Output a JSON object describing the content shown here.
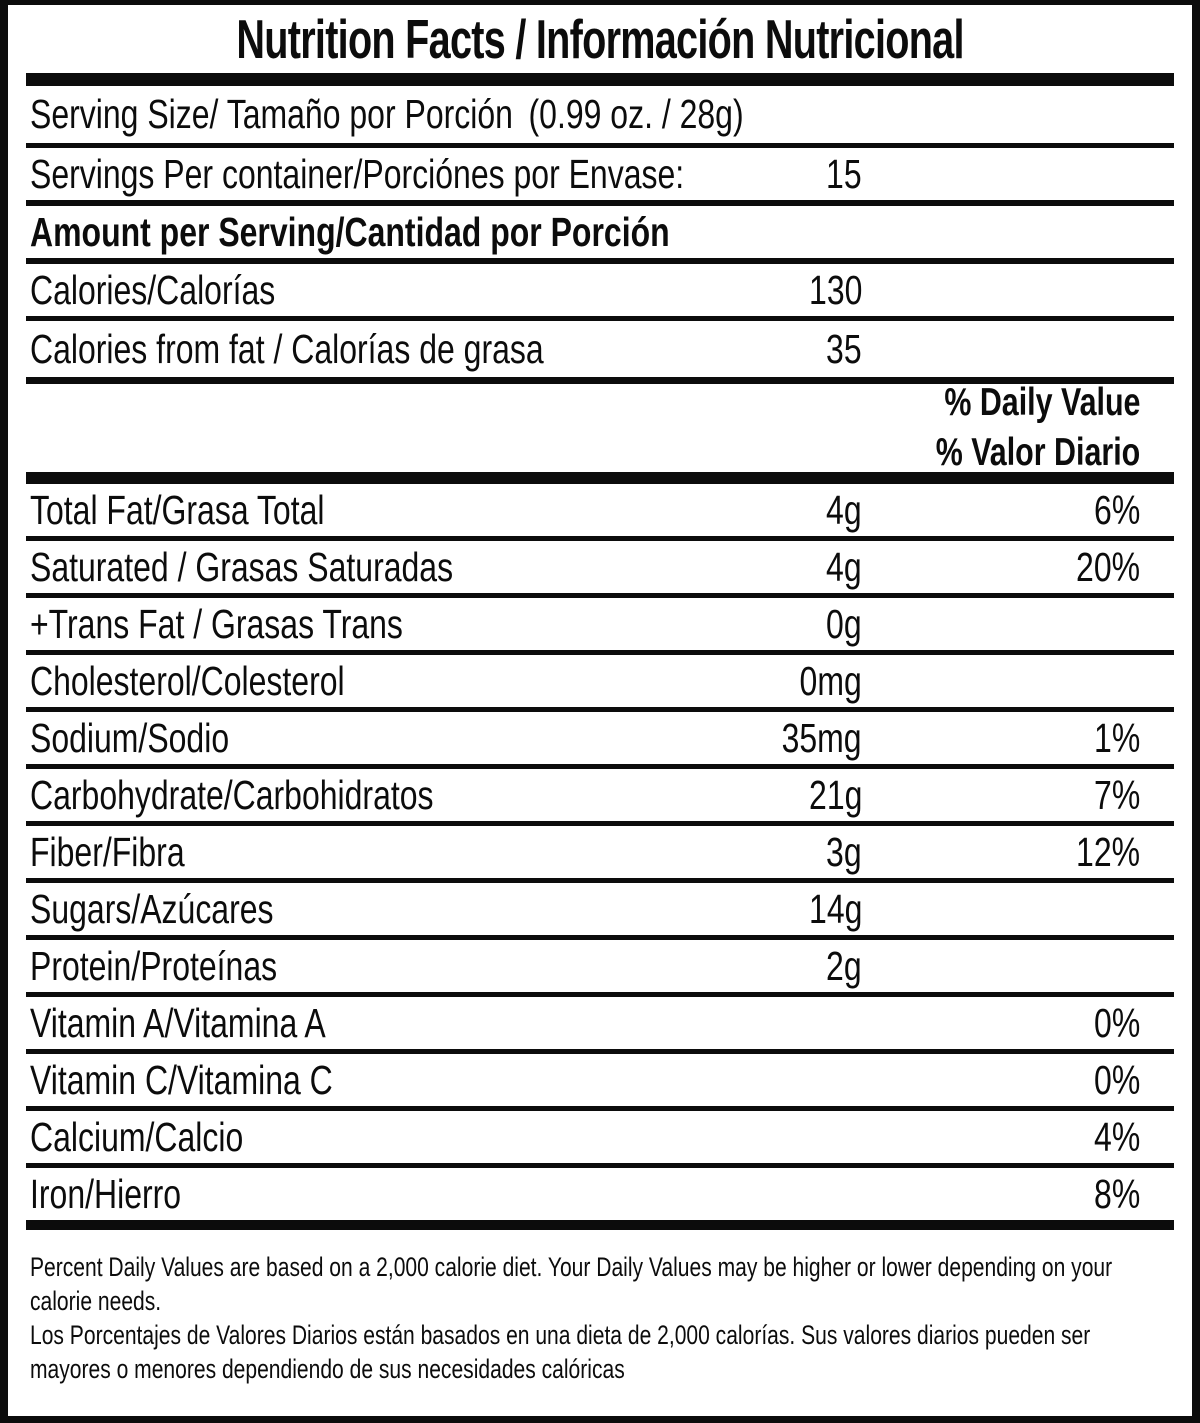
{
  "label": {
    "title": "Nutrition Facts / Información Nutricional",
    "serving_size": {
      "label": "Serving Size/ Tamaño por Porción",
      "value": "(0.99 oz. / 28g)"
    },
    "servings_per_container": {
      "label": "Servings Per container/Porciónes por Envase:",
      "value": "15"
    },
    "amount_header": "Amount per Serving/Cantidad por Porción",
    "calories": {
      "label": "Calories/Calorías",
      "value": "130"
    },
    "calories_from_fat": {
      "label": "Calories from fat / Calorías de grasa",
      "value": "35"
    },
    "daily_value_header": {
      "line1": "% Daily Value",
      "line2": "% Valor Diario"
    },
    "nutrients": [
      {
        "label": "Total Fat/Grasa Total",
        "amount": "4g",
        "dv": "6%"
      },
      {
        "label": "Saturated / Grasas Saturadas",
        "amount": "4g",
        "dv": "20%"
      },
      {
        "label": "+Trans Fat / Grasas Trans",
        "amount": "0g",
        "dv": ""
      },
      {
        "label": "Cholesterol/Colesterol",
        "amount": "0mg",
        "dv": ""
      },
      {
        "label": "Sodium/Sodio",
        "amount": "35mg",
        "dv": "1%"
      },
      {
        "label": "Carbohydrate/Carbohidratos",
        "amount": "21g",
        "dv": "7%"
      },
      {
        "label": "Fiber/Fibra",
        "amount": "3g",
        "dv": "12%"
      },
      {
        "label": "Sugars/Azúcares",
        "amount": "14g",
        "dv": ""
      },
      {
        "label": "Protein/Proteínas",
        "amount": "2g",
        "dv": ""
      }
    ],
    "micronutrients": [
      {
        "label": "Vitamin A/Vitamina A",
        "dv": "0%"
      },
      {
        "label": "Vitamin C/Vitamina C",
        "dv": "0%"
      },
      {
        "label": "Calcium/Calcio",
        "dv": "4%"
      },
      {
        "label": "Iron/Hierro",
        "dv": "8%"
      }
    ],
    "footnote": {
      "en_line1": "Percent Daily Values are based on a 2,000 calorie diet. Your Daily Values may be higher or lower depending on your",
      "en_line2": "calorie needs.",
      "es_line1": "Los Porcentajes de Valores Diarios están basados en una dieta de 2,000 calorías. Sus valores diarios pueden ser",
      "es_line2": "mayores o menores dependiendo de sus necesidades calóricas"
    },
    "colors": {
      "text": "#0c0c0c",
      "background": "#ffffff"
    }
  }
}
